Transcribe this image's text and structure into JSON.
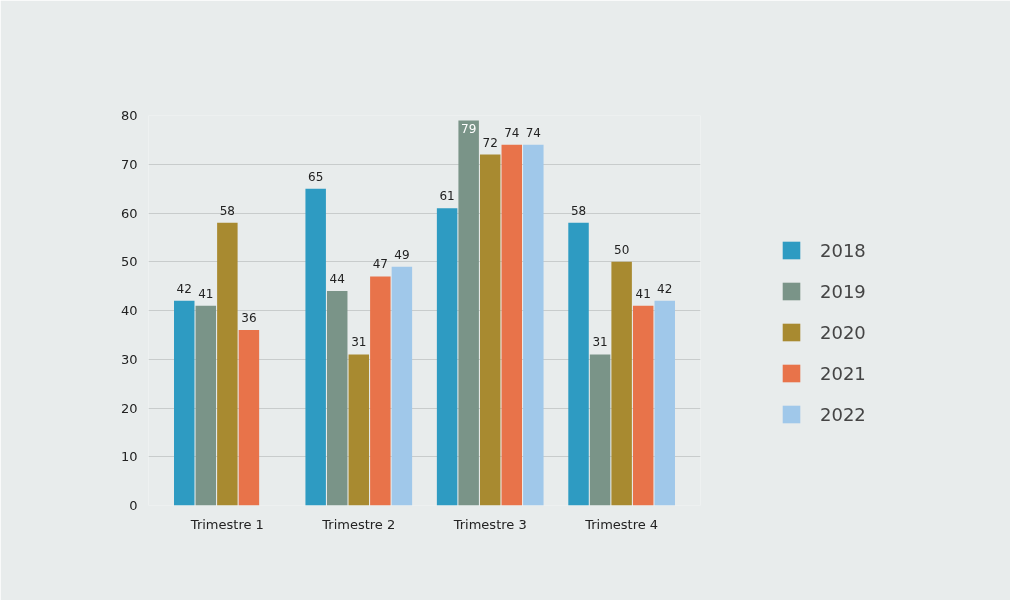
{
  "chart_data": {
    "type": "bar",
    "categories": [
      "Trimestre 1",
      "Trimestre 2",
      "Trimestre 3",
      "Trimestre 4"
    ],
    "series": [
      {
        "name": "2018",
        "color": "#2e9bc2",
        "values": [
          42,
          65,
          61,
          58
        ]
      },
      {
        "name": "2019",
        "color": "#7a9488",
        "values": [
          41,
          44,
          79,
          31
        ]
      },
      {
        "name": "2020",
        "color": "#a88a30",
        "values": [
          58,
          31,
          72,
          50
        ]
      },
      {
        "name": "2021",
        "color": "#e8734a",
        "values": [
          36,
          47,
          74,
          41
        ]
      },
      {
        "name": "2022",
        "color": "#a0c8ea",
        "values": [
          null,
          49,
          74,
          42
        ]
      }
    ],
    "ylim": [
      0,
      80
    ],
    "yticks": [
      0,
      10,
      20,
      30,
      40,
      50,
      60,
      70,
      80
    ],
    "grid": "y",
    "legend": "right",
    "data_labels": true
  }
}
